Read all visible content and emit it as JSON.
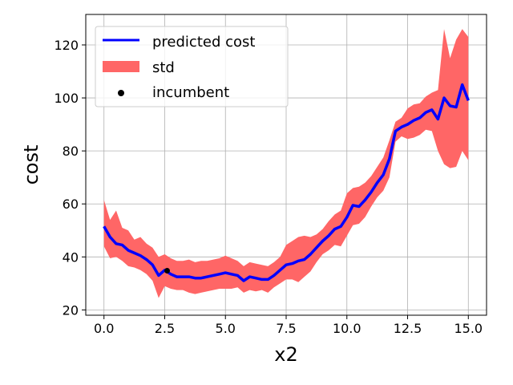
{
  "chart_data": {
    "type": "line",
    "xlabel": "x2",
    "ylabel": "cost",
    "xlim": [
      -0.75,
      15.75
    ],
    "ylim": [
      18,
      131.5
    ],
    "xticks": [
      0.0,
      2.5,
      5.0,
      7.5,
      10.0,
      12.5,
      15.0
    ],
    "xtick_labels": [
      "0.0",
      "2.5",
      "5.0",
      "7.5",
      "10.0",
      "12.5",
      "15.0"
    ],
    "yticks": [
      20,
      40,
      60,
      80,
      100,
      120
    ],
    "ytick_labels": [
      "20",
      "40",
      "60",
      "80",
      "100",
      "120"
    ],
    "grid": true,
    "legend_placement": "top-left",
    "colors": {
      "predicted": "#0000ff",
      "std": "#ff6666",
      "incumbent": "#000000",
      "grid": "#b0b0b0"
    },
    "legend": [
      {
        "label": "predicted cost",
        "kind": "line"
      },
      {
        "label": "std",
        "kind": "patch"
      },
      {
        "label": "incumbent",
        "kind": "point"
      }
    ],
    "series": [
      {
        "name": "predicted cost",
        "x": [
          0.0,
          0.25,
          0.5,
          0.75,
          1.0,
          1.25,
          1.5,
          1.75,
          2.0,
          2.25,
          2.5,
          2.75,
          3.0,
          3.25,
          3.5,
          3.75,
          4.0,
          4.25,
          4.5,
          4.75,
          5.0,
          5.25,
          5.5,
          5.75,
          6.0,
          6.25,
          6.5,
          6.75,
          7.0,
          7.25,
          7.5,
          7.75,
          8.0,
          8.25,
          8.5,
          8.75,
          9.0,
          9.25,
          9.5,
          9.75,
          10.0,
          10.25,
          10.5,
          10.75,
          11.0,
          11.25,
          11.5,
          11.75,
          12.0,
          12.25,
          12.5,
          12.75,
          13.0,
          13.25,
          13.5,
          13.75,
          14.0,
          14.25,
          14.5,
          14.75,
          15.0
        ],
        "y": [
          51.5,
          47.5,
          45.0,
          44.5,
          42.5,
          41.5,
          40.5,
          39.0,
          37.0,
          33.0,
          35.0,
          33.5,
          32.5,
          32.5,
          32.5,
          32.0,
          32.0,
          32.5,
          33.0,
          33.5,
          34.0,
          33.5,
          33.0,
          31.0,
          32.5,
          32.0,
          31.5,
          31.5,
          33.0,
          35.0,
          37.0,
          37.5,
          38.5,
          39.0,
          41.0,
          43.5,
          46.0,
          48.0,
          50.5,
          51.5,
          55.0,
          59.5,
          59.0,
          61.5,
          64.5,
          68.0,
          71.0,
          77.0,
          87.5,
          89.0,
          90.0,
          91.5,
          92.5,
          94.5,
          95.5,
          92.0,
          100.0,
          97.0,
          96.5,
          105.0,
          99.0
        ]
      },
      {
        "name": "std",
        "x": [
          0.0,
          0.25,
          0.5,
          0.75,
          1.0,
          1.25,
          1.5,
          1.75,
          2.0,
          2.25,
          2.5,
          2.75,
          3.0,
          3.25,
          3.5,
          3.75,
          4.0,
          4.25,
          4.5,
          4.75,
          5.0,
          5.25,
          5.5,
          5.75,
          6.0,
          6.25,
          6.5,
          6.75,
          7.0,
          7.25,
          7.5,
          7.75,
          8.0,
          8.25,
          8.5,
          8.75,
          9.0,
          9.25,
          9.5,
          9.75,
          10.0,
          10.25,
          10.5,
          10.75,
          11.0,
          11.25,
          11.5,
          11.75,
          12.0,
          12.25,
          12.5,
          12.75,
          13.0,
          13.25,
          13.5,
          13.75,
          14.0,
          14.25,
          14.5,
          14.75,
          15.0
        ],
        "upper": [
          61.5,
          54.0,
          57.5,
          51.0,
          50.0,
          46.5,
          47.5,
          45.0,
          43.5,
          40.0,
          41.0,
          39.5,
          38.5,
          38.5,
          39.0,
          38.0,
          38.5,
          38.5,
          39.0,
          39.5,
          40.5,
          39.5,
          38.5,
          36.5,
          38.0,
          37.5,
          37.0,
          36.5,
          38.0,
          40.0,
          44.5,
          46.0,
          47.5,
          48.0,
          47.5,
          48.5,
          50.5,
          53.5,
          56.0,
          57.5,
          64.0,
          66.0,
          66.5,
          68.0,
          70.5,
          74.0,
          77.5,
          84.0,
          91.0,
          92.5,
          96.0,
          97.5,
          98.0,
          100.5,
          102.0,
          103.0,
          126.0,
          115.0,
          122.0,
          126.0,
          123.0
        ],
        "lower": [
          44.0,
          39.5,
          40.0,
          38.5,
          36.5,
          36.0,
          35.0,
          33.5,
          31.0,
          24.5,
          29.0,
          28.0,
          27.5,
          27.5,
          26.5,
          26.0,
          26.5,
          27.0,
          27.5,
          28.0,
          28.0,
          28.0,
          28.5,
          26.5,
          27.5,
          27.0,
          27.5,
          26.5,
          28.5,
          30.0,
          31.5,
          31.5,
          30.5,
          32.5,
          34.5,
          38.0,
          41.0,
          42.5,
          44.5,
          44.0,
          48.0,
          52.0,
          52.5,
          55.0,
          59.0,
          62.5,
          65.0,
          70.0,
          83.5,
          85.5,
          84.5,
          85.0,
          86.0,
          88.0,
          87.5,
          80.0,
          75.0,
          73.5,
          74.0,
          80.0,
          76.5
        ]
      },
      {
        "name": "incumbent",
        "x": [
          2.6
        ],
        "y": [
          34.8
        ]
      }
    ]
  }
}
